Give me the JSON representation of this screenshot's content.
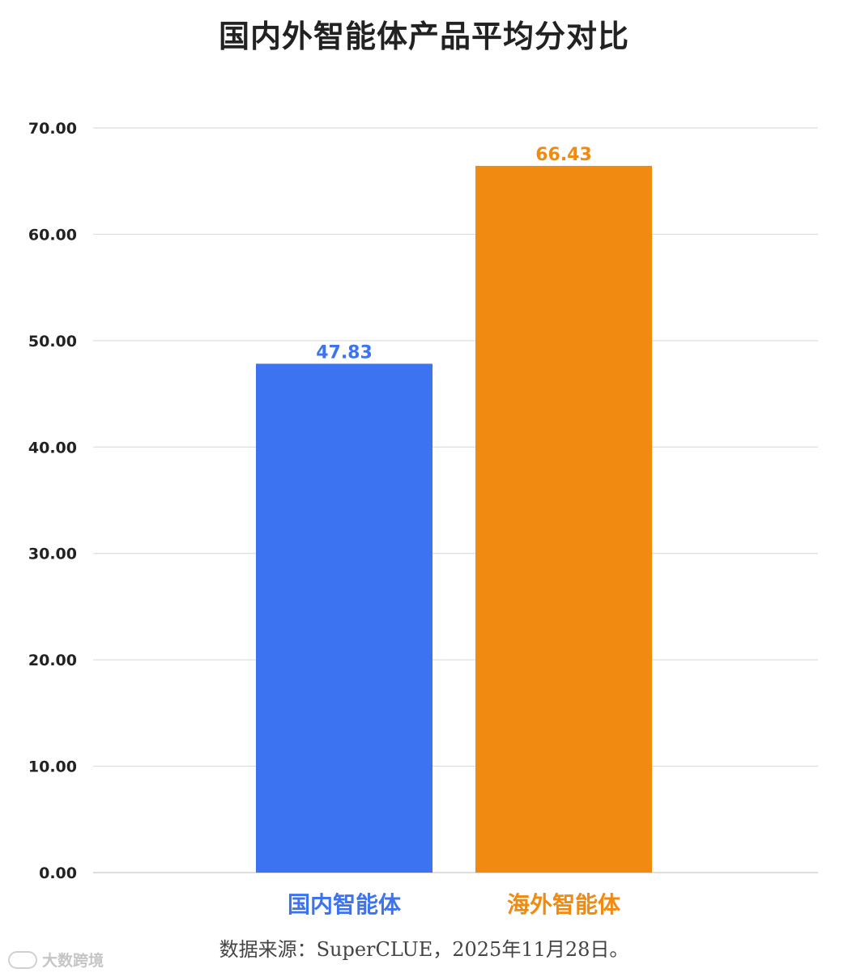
{
  "chart_data": {
    "type": "bar",
    "title": "国内外智能体产品平均分对比",
    "categories": [
      "国内智能体",
      "海外智能体"
    ],
    "values": [
      47.83,
      66.43
    ],
    "value_labels": [
      "47.83",
      "66.43"
    ],
    "colors": [
      "#3C73F0",
      "#F08A10"
    ],
    "ylim": [
      0,
      70
    ],
    "yticks": [
      "0.00",
      "10.00",
      "20.00",
      "30.00",
      "40.00",
      "50.00",
      "60.00",
      "70.00"
    ],
    "xlabel": "",
    "ylabel": "",
    "grid": true,
    "legend": "none"
  },
  "source_note": "数据来源：SuperCLUE，2025年11月28日。",
  "watermark": {
    "icon": "logo-icon",
    "text": "大数跨境"
  }
}
